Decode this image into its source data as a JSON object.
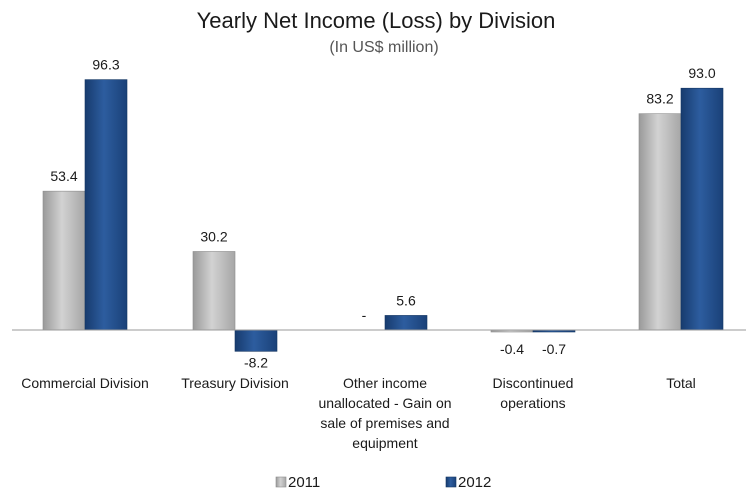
{
  "chart_data": {
    "type": "bar",
    "title": "Yearly Net Income (Loss) by Division",
    "subtitle": "(In US$ million)",
    "categories": [
      [
        "Commercial Division"
      ],
      [
        "Treasury Division"
      ],
      [
        "Other income",
        "unallocated - Gain on",
        "sale of premises and",
        "equipment"
      ],
      [
        "Discontinued",
        "operations"
      ],
      [
        "Total"
      ]
    ],
    "series": [
      {
        "name": "2011",
        "color": "#b3b3b3",
        "values": [
          53.4,
          30.2,
          0,
          -0.4,
          83.2
        ],
        "labels": [
          "53.4",
          "30.2",
          "-",
          "-0.4",
          "83.2"
        ]
      },
      {
        "name": "2012",
        "color": "#1f4e8c",
        "values": [
          96.3,
          -8.2,
          5.6,
          -0.7,
          93.0
        ],
        "labels": [
          "96.3",
          "-8.2",
          "5.6",
          "-0.7",
          "93.0"
        ]
      }
    ],
    "ylim": [
      -10,
      100
    ],
    "grid": false,
    "legend": "bottom"
  }
}
